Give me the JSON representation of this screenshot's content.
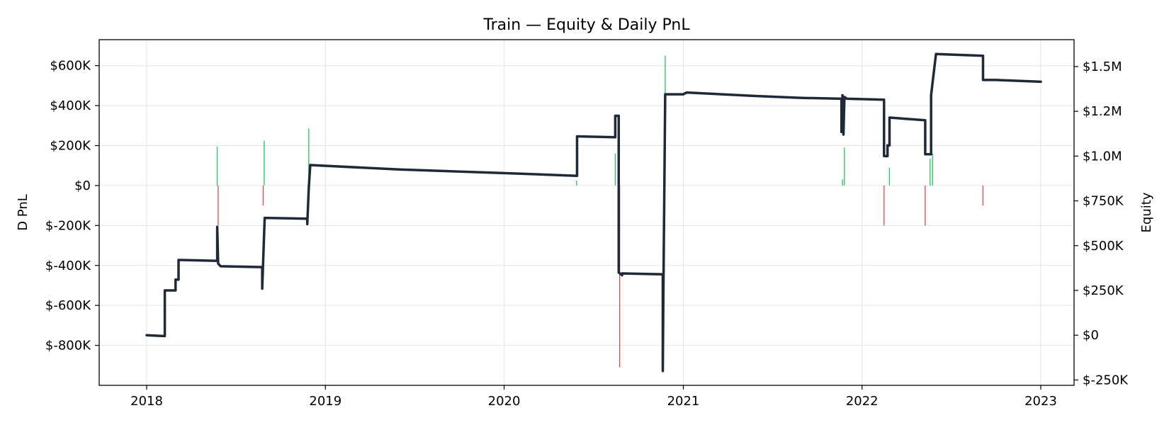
{
  "chart_data": {
    "type": "line",
    "title": "Train — Equity & Daily PnL",
    "ylabel_left": "D PnL",
    "ylabel_right": "Equity",
    "xlabel": "",
    "x_range": [
      "2017-09-26",
      "2023-03-10"
    ],
    "ylim_left": [
      -1000000,
      730000
    ],
    "ylim_right": [
      -280000,
      1650000
    ],
    "grid": true,
    "x_ticks": [
      {
        "label": "2018",
        "date": "2018-01-01"
      },
      {
        "label": "2019",
        "date": "2019-01-01"
      },
      {
        "label": "2020",
        "date": "2020-01-01"
      },
      {
        "label": "2021",
        "date": "2021-01-01"
      },
      {
        "label": "2022",
        "date": "2022-01-01"
      },
      {
        "label": "2023",
        "date": "2023-01-01"
      }
    ],
    "y_ticks_left": [
      {
        "label": "$600K",
        "value": 600000
      },
      {
        "label": "$400K",
        "value": 400000
      },
      {
        "label": "$200K",
        "value": 200000
      },
      {
        "label": "$0",
        "value": 0
      },
      {
        "label": "$-200K",
        "value": -200000
      },
      {
        "label": "$-400K",
        "value": -400000
      },
      {
        "label": "$-600K",
        "value": -600000
      },
      {
        "label": "$-800K",
        "value": -800000
      }
    ],
    "y_ticks_right": [
      {
        "label": "$1.5M",
        "value": 1500000
      },
      {
        "label": "$1.2M",
        "value": 1250000
      },
      {
        "label": "$1.0M",
        "value": 1000000
      },
      {
        "label": "$750K",
        "value": 750000
      },
      {
        "label": "$500K",
        "value": 500000
      },
      {
        "label": "$250K",
        "value": 250000
      },
      {
        "label": "$0",
        "value": 0
      },
      {
        "label": "$-250K",
        "value": -250000
      }
    ],
    "colors": {
      "equity": "#1f2937",
      "pnl_positive": "#22c55e",
      "pnl_negative": "#ef4444",
      "grid": "#e5e5e5"
    },
    "series": [
      {
        "name": "Equity",
        "axis": "right",
        "points": [
          [
            "2018-01-01",
            0
          ],
          [
            "2018-02-07",
            -5000
          ],
          [
            "2018-02-07",
            250000
          ],
          [
            "2018-03-01",
            250000
          ],
          [
            "2018-03-01",
            310000
          ],
          [
            "2018-03-07",
            310000
          ],
          [
            "2018-03-07",
            420000
          ],
          [
            "2018-05-25",
            415000
          ],
          [
            "2018-05-25",
            605000
          ],
          [
            "2018-05-27",
            400000
          ],
          [
            "2018-06-01",
            385000
          ],
          [
            "2018-08-25",
            380000
          ],
          [
            "2018-08-25",
            260000
          ],
          [
            "2018-08-28",
            500000
          ],
          [
            "2018-08-30",
            655000
          ],
          [
            "2018-11-25",
            650000
          ],
          [
            "2018-11-25",
            620000
          ],
          [
            "2018-11-28",
            820000
          ],
          [
            "2018-12-01",
            950000
          ],
          [
            "2019-06-01",
            925000
          ],
          [
            "2020-01-01",
            905000
          ],
          [
            "2020-05-29",
            890000
          ],
          [
            "2020-05-29",
            1110000
          ],
          [
            "2020-08-15",
            1105000
          ],
          [
            "2020-08-15",
            1225000
          ],
          [
            "2020-08-22",
            1225000
          ],
          [
            "2020-08-22",
            350000
          ],
          [
            "2020-08-29",
            335000
          ],
          [
            "2020-08-29",
            345000
          ],
          [
            "2020-11-20",
            340000
          ],
          [
            "2020-11-20",
            -200000
          ],
          [
            "2020-11-21",
            170000
          ],
          [
            "2020-11-25",
            1345000
          ],
          [
            "2021-01-01",
            1345000
          ],
          [
            "2021-01-08",
            1355000
          ],
          [
            "2021-06-01",
            1335000
          ],
          [
            "2021-09-01",
            1325000
          ],
          [
            "2021-11-20",
            1320000
          ],
          [
            "2021-11-20",
            1135000
          ],
          [
            "2021-11-22",
            1340000
          ],
          [
            "2021-11-24",
            1120000
          ],
          [
            "2021-11-26",
            1330000
          ],
          [
            "2021-12-01",
            1320000
          ],
          [
            "2022-02-15",
            1315000
          ],
          [
            "2022-02-15",
            1000000
          ],
          [
            "2022-02-22",
            1000000
          ],
          [
            "2022-02-22",
            1060000
          ],
          [
            "2022-02-26",
            1060000
          ],
          [
            "2022-02-26",
            1215000
          ],
          [
            "2022-05-10",
            1200000
          ],
          [
            "2022-05-10",
            1010000
          ],
          [
            "2022-05-22",
            1010000
          ],
          [
            "2022-05-22",
            1340000
          ],
          [
            "2022-06-01",
            1570000
          ],
          [
            "2022-09-05",
            1560000
          ],
          [
            "2022-09-05",
            1425000
          ],
          [
            "2022-10-01",
            1425000
          ],
          [
            "2023-01-01",
            1415000
          ]
        ]
      },
      {
        "name": "D PnL",
        "axis": "left",
        "bars": [
          [
            "2018-05-25",
            195000
          ],
          [
            "2018-05-27",
            -200000
          ],
          [
            "2018-08-27",
            -100000
          ],
          [
            "2018-08-29",
            225000
          ],
          [
            "2018-11-28",
            285000
          ],
          [
            "2020-05-28",
            25000
          ],
          [
            "2020-08-15",
            160000
          ],
          [
            "2020-08-24",
            -910000
          ],
          [
            "2020-11-24",
            300000
          ],
          [
            "2020-11-25",
            650000
          ],
          [
            "2021-11-22",
            30000
          ],
          [
            "2021-11-26",
            190000
          ],
          [
            "2022-02-15",
            -200000
          ],
          [
            "2022-02-26",
            90000
          ],
          [
            "2022-05-10",
            -200000
          ],
          [
            "2022-05-20",
            135000
          ],
          [
            "2022-05-25",
            160000
          ],
          [
            "2022-09-05",
            -100000
          ]
        ]
      }
    ]
  }
}
